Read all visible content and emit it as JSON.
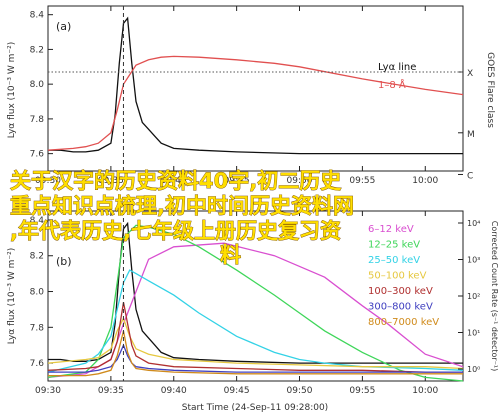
{
  "overlay": {
    "line1": "关于汉字的历史资料40字,初二历史",
    "line2": "重点知识点梳理,初中时间历史资料网",
    "line3": ",年代表历史,七年级上册历史复习资",
    "line4": "料"
  },
  "chart_data": [
    {
      "type": "line",
      "panel_label": "(a)",
      "ylabel": "Lyα flux (10⁻³ W m⁻²)",
      "ylabel_right": "GOES Flare class",
      "xlim": [
        "09:30",
        "10:03"
      ],
      "ylim": [
        7.5,
        8.45
      ],
      "yticks": [
        "7.6",
        "7.8",
        "8.0",
        "8.2",
        "8.4"
      ],
      "goes_class_labels": [
        "X",
        "M",
        "C"
      ],
      "goes_class_levels": [
        8.07,
        7.72,
        7.48
      ],
      "xticks": [
        "09:30",
        "09:35",
        "09:40",
        "09:45",
        "09:50",
        "09:55",
        "10:00"
      ],
      "event_time": "09:36",
      "legend": {
        "title": "Lyα line",
        "entries": [
          "1–8 Å"
        ],
        "position": "upper-right"
      },
      "series": [
        {
          "name": "Lyα line",
          "color": "#111111",
          "x": [
            "09:30",
            "09:31",
            "09:32",
            "09:33",
            "09:34",
            "09:35",
            "09:35:20",
            "09:35:40",
            "09:36",
            "09:36:20",
            "09:36:40",
            "09:37",
            "09:37:30",
            "09:38",
            "09:38:30",
            "09:39",
            "09:40",
            "09:42",
            "09:45",
            "09:50",
            "09:55",
            "10:00",
            "10:03"
          ],
          "y": [
            7.62,
            7.62,
            7.61,
            7.61,
            7.62,
            7.66,
            7.82,
            8.12,
            8.35,
            8.38,
            8.12,
            7.9,
            7.78,
            7.74,
            7.7,
            7.66,
            7.63,
            7.62,
            7.61,
            7.6,
            7.6,
            7.6,
            7.6
          ]
        },
        {
          "name": "1–8 Å",
          "color": "#e15050",
          "x": [
            "09:30",
            "09:32",
            "09:33",
            "09:34",
            "09:35",
            "09:35:30",
            "09:36",
            "09:37",
            "09:38",
            "09:39",
            "09:40",
            "09:42",
            "09:45",
            "09:48",
            "09:50",
            "09:55",
            "10:00",
            "10:03"
          ],
          "y": [
            7.62,
            7.63,
            7.64,
            7.66,
            7.72,
            7.85,
            8.0,
            8.11,
            8.14,
            8.155,
            8.16,
            8.155,
            8.14,
            8.12,
            8.1,
            8.03,
            7.97,
            7.94
          ]
        }
      ]
    },
    {
      "type": "line",
      "panel_label": "(b)",
      "ylabel": "Lyα flux (10⁻³ W m⁻²)",
      "ylabel_right": "Corrected Count Rate (s⁻¹ detector⁻¹)",
      "right_tick_labels": [
        "10⁴",
        "10³",
        "10²",
        "10¹",
        "10⁰"
      ],
      "xlabel": "Start Time (24-Sep-11 09:28:00)",
      "xlim": [
        "09:30",
        "10:03"
      ],
      "ylim": [
        7.5,
        8.45
      ],
      "yticks": [
        "7.6",
        "7.8",
        "8.0",
        "8.2",
        "8.4"
      ],
      "xticks": [
        "09:30",
        "09:35",
        "09:40",
        "09:45",
        "09:50",
        "09:55",
        "10:00"
      ],
      "event_time": "09:36",
      "legend": {
        "position": "right",
        "entries": [
          "6–12 keV",
          "12–25 keV",
          "25–50 keV",
          "50–100 keV",
          "100–300 keV",
          "300–800 keV",
          "800–7000 keV"
        ]
      },
      "series": [
        {
          "name": "Lyα line",
          "color": "#111111",
          "x": [
            "09:30",
            "09:31",
            "09:32",
            "09:33",
            "09:34",
            "09:35",
            "09:35:20",
            "09:35:40",
            "09:36",
            "09:36:20",
            "09:36:40",
            "09:37",
            "09:37:30",
            "09:38",
            "09:38:30",
            "09:39",
            "09:40",
            "09:42",
            "09:45",
            "09:50",
            "09:55",
            "10:00",
            "10:03"
          ],
          "y": [
            7.62,
            7.62,
            7.61,
            7.61,
            7.62,
            7.66,
            7.82,
            8.12,
            8.35,
            8.38,
            8.12,
            7.9,
            7.78,
            7.74,
            7.7,
            7.66,
            7.63,
            7.62,
            7.61,
            7.6,
            7.6,
            7.6,
            7.6
          ]
        },
        {
          "name": "6–12 keV",
          "color": "#d94fd0",
          "x": [
            "09:30",
            "09:33",
            "09:35",
            "09:36",
            "09:38",
            "09:40",
            "09:44",
            "09:48",
            "09:52",
            "09:55",
            "09:57",
            "10:00",
            "10:03"
          ],
          "y": [
            7.52,
            7.54,
            7.62,
            7.82,
            8.18,
            8.25,
            8.27,
            8.2,
            8.08,
            7.92,
            7.82,
            7.65,
            7.58
          ]
        },
        {
          "name": "12–25 keV",
          "color": "#3fd65a",
          "x": [
            "09:30",
            "09:33",
            "09:34",
            "09:35",
            "09:35:30",
            "09:36",
            "09:37",
            "09:38",
            "09:39",
            "09:40",
            "09:42",
            "09:45",
            "09:48",
            "09:50",
            "09:52",
            "09:55",
            "09:58",
            "10:00",
            "10:03"
          ],
          "y": [
            7.52,
            7.55,
            7.62,
            7.8,
            8.05,
            8.3,
            8.37,
            8.36,
            8.34,
            8.32,
            8.25,
            8.12,
            7.98,
            7.88,
            7.78,
            7.66,
            7.56,
            7.52,
            7.5
          ]
        },
        {
          "name": "25–50 keV",
          "color": "#33d2e6",
          "x": [
            "09:30",
            "09:33",
            "09:34",
            "09:35",
            "09:35:30",
            "09:36",
            "09:36:30",
            "09:37",
            "09:38",
            "09:40",
            "09:42",
            "09:45",
            "09:48",
            "09:50",
            "09:52",
            "09:55",
            "10:00",
            "10:03"
          ],
          "y": [
            7.55,
            7.6,
            7.65,
            7.75,
            7.9,
            8.05,
            8.12,
            8.1,
            8.06,
            7.98,
            7.88,
            7.75,
            7.66,
            7.62,
            7.6,
            7.58,
            7.57,
            7.56
          ]
        },
        {
          "name": "50–100 keV",
          "color": "#e6c840",
          "x": [
            "09:30",
            "09:33",
            "09:34",
            "09:35",
            "09:35:30",
            "09:36",
            "09:36:30",
            "09:37",
            "09:38",
            "09:40",
            "09:45",
            "09:50",
            "09:55",
            "10:00",
            "10:03"
          ],
          "y": [
            7.6,
            7.62,
            7.63,
            7.68,
            7.78,
            7.85,
            7.75,
            7.68,
            7.65,
            7.62,
            7.6,
            7.59,
            7.58,
            7.58,
            7.57
          ]
        },
        {
          "name": "100–300 keV",
          "color": "#b03030",
          "x": [
            "09:30",
            "09:33",
            "09:34",
            "09:35",
            "09:35:30",
            "09:36",
            "09:36:20",
            "09:36:40",
            "09:37",
            "09:38",
            "09:40",
            "09:45",
            "09:50",
            "09:55",
            "10:00",
            "10:03"
          ],
          "y": [
            7.56,
            7.57,
            7.58,
            7.62,
            7.72,
            7.94,
            7.82,
            7.7,
            7.64,
            7.6,
            7.58,
            7.57,
            7.56,
            7.56,
            7.55,
            7.55
          ]
        },
        {
          "name": "300–800 keV",
          "color": "#4040c0",
          "x": [
            "09:30",
            "09:33",
            "09:34",
            "09:35",
            "09:35:30",
            "09:36",
            "09:36:20",
            "09:36:40",
            "09:37",
            "09:38",
            "09:40",
            "09:45",
            "09:50",
            "09:55",
            "10:00",
            "10:03"
          ],
          "y": [
            7.55,
            7.55,
            7.56,
            7.58,
            7.62,
            7.7,
            7.64,
            7.6,
            7.58,
            7.57,
            7.56,
            7.55,
            7.55,
            7.55,
            7.55,
            7.55
          ]
        },
        {
          "name": "800–7000 keV",
          "color": "#d08b1c",
          "x": [
            "09:30",
            "09:33",
            "09:34",
            "09:35",
            "09:35:30",
            "09:36",
            "09:36:20",
            "09:36:40",
            "09:37",
            "09:38",
            "09:40",
            "09:45",
            "09:50",
            "09:55",
            "10:00",
            "10:03"
          ],
          "y": [
            7.53,
            7.53,
            7.54,
            7.56,
            7.64,
            7.78,
            7.66,
            7.6,
            7.57,
            7.56,
            7.55,
            7.54,
            7.54,
            7.54,
            7.54,
            7.54
          ]
        }
      ]
    }
  ]
}
